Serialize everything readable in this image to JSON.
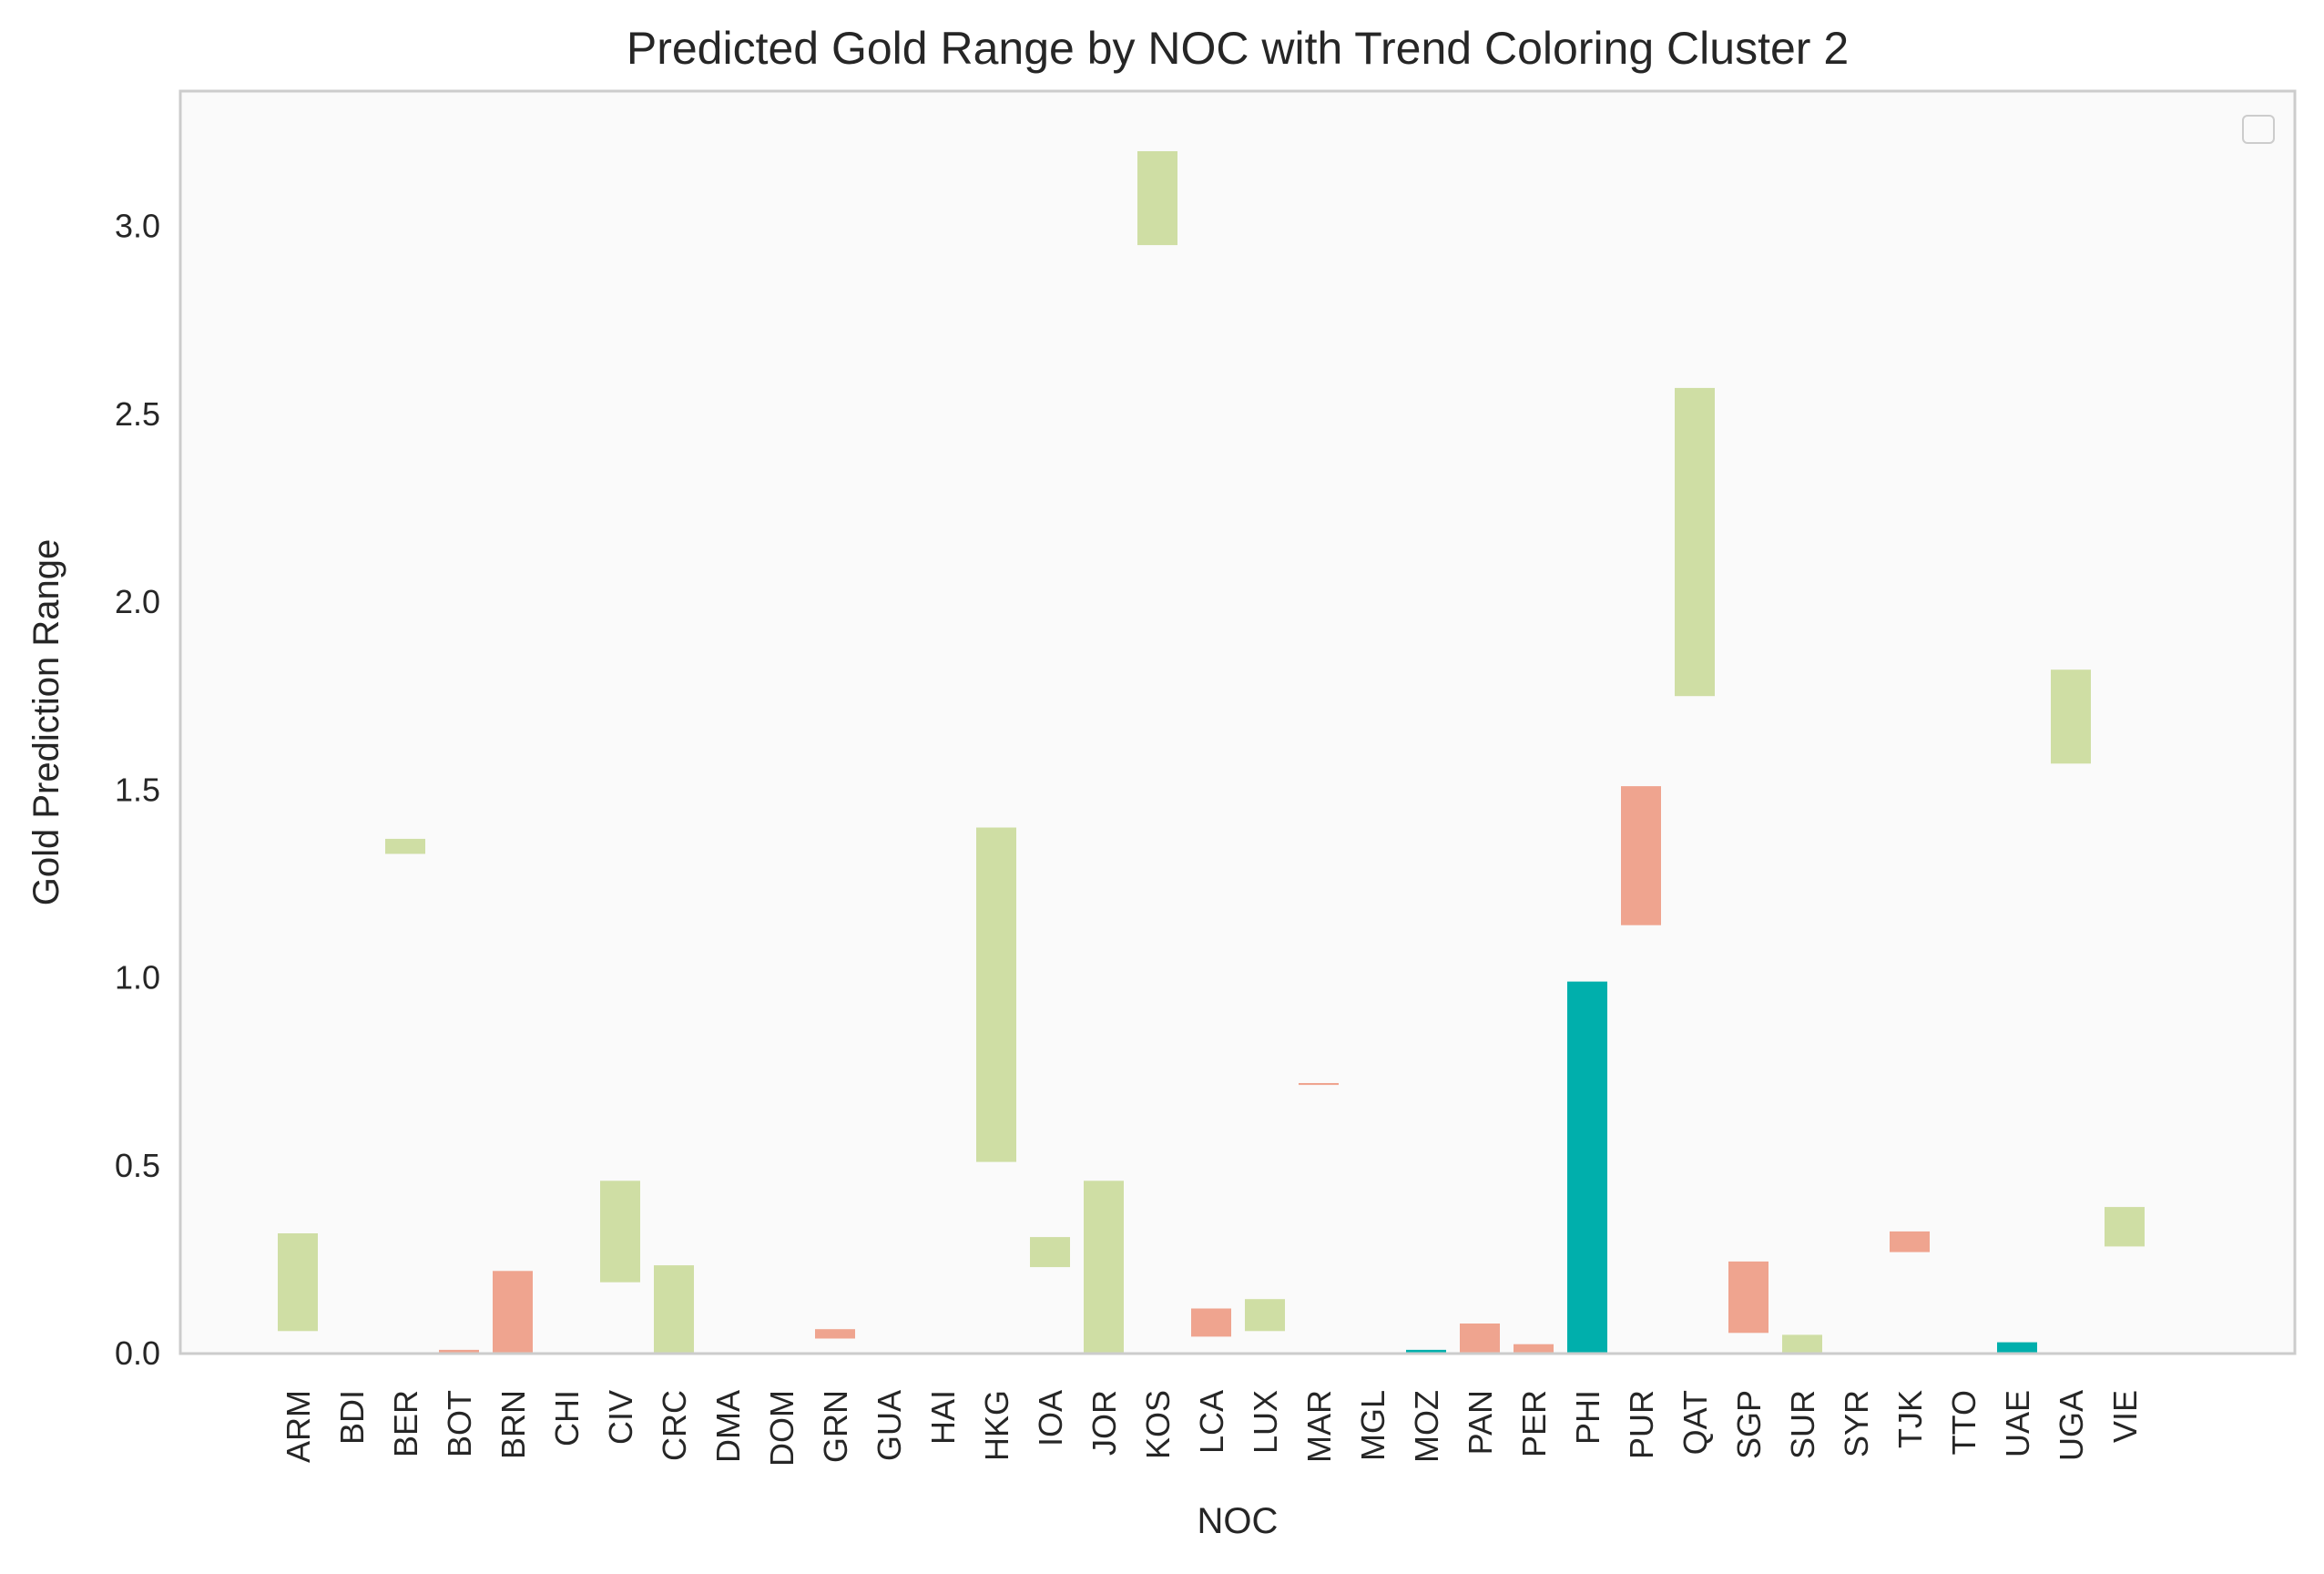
{
  "chart_data": {
    "type": "bar",
    "title": "Predicted Gold Range by NOC with Trend Coloring Cluster 2",
    "xlabel": "NOC",
    "ylabel": "Gold Prediction Range",
    "ylim": [
      0,
      3.36
    ],
    "yticks": [
      "0.0",
      "0.5",
      "1.0",
      "1.5",
      "2.0",
      "2.5",
      "3.0"
    ],
    "ytick_values": [
      0,
      0.5,
      1.0,
      1.5,
      2.0,
      2.5,
      3.0
    ],
    "grid": false,
    "legend": "top-right (empty)",
    "trend_colors": {
      "up": "#cfdea4",
      "down": "#efa48f",
      "stable": "#00afac"
    },
    "categories": [
      "ARM",
      "BDI",
      "BER",
      "BOT",
      "BRN",
      "CHI",
      "CIV",
      "CRC",
      "DMA",
      "DOM",
      "GRN",
      "GUA",
      "HAI",
      "HKG",
      "IOA",
      "JOR",
      "KOS",
      "LCA",
      "LUX",
      "MAR",
      "MGL",
      "MOZ",
      "PAN",
      "PER",
      "PHI",
      "PUR",
      "QAT",
      "SGP",
      "SUR",
      "SYR",
      "TJK",
      "TTO",
      "UAE",
      "UGA",
      "VIE"
    ],
    "bars": [
      {
        "noc": "ARM",
        "low": 0.06,
        "high": 0.32,
        "trend": "up"
      },
      {
        "noc": "BDI",
        "low": 0,
        "high": 0,
        "trend": "up"
      },
      {
        "noc": "BER",
        "low": 1.33,
        "high": 1.37,
        "trend": "up"
      },
      {
        "noc": "BOT",
        "low": 0.0,
        "high": 0.01,
        "trend": "down"
      },
      {
        "noc": "BRN",
        "low": 0.0,
        "high": 0.22,
        "trend": "down"
      },
      {
        "noc": "CHI",
        "low": 0,
        "high": 0,
        "trend": "up"
      },
      {
        "noc": "CIV",
        "low": 0.19,
        "high": 0.46,
        "trend": "up"
      },
      {
        "noc": "CRC",
        "low": 0.0,
        "high": 0.235,
        "trend": "up"
      },
      {
        "noc": "DMA",
        "low": 0,
        "high": 0,
        "trend": "up"
      },
      {
        "noc": "DOM",
        "low": 0,
        "high": 0,
        "trend": "up"
      },
      {
        "noc": "GRN",
        "low": 0.04,
        "high": 0.065,
        "trend": "down"
      },
      {
        "noc": "GUA",
        "low": 0,
        "high": 0,
        "trend": "up"
      },
      {
        "noc": "HAI",
        "low": 0,
        "high": 0,
        "trend": "up"
      },
      {
        "noc": "HKG",
        "low": 0.51,
        "high": 1.4,
        "trend": "up"
      },
      {
        "noc": "IOA",
        "low": 0.23,
        "high": 0.31,
        "trend": "up"
      },
      {
        "noc": "JOR",
        "low": 0.0,
        "high": 0.46,
        "trend": "up"
      },
      {
        "noc": "KOS",
        "low": 2.95,
        "high": 3.2,
        "trend": "up"
      },
      {
        "noc": "LCA",
        "low": 0.045,
        "high": 0.12,
        "trend": "down"
      },
      {
        "noc": "LUX",
        "low": 0.06,
        "high": 0.145,
        "trend": "up"
      },
      {
        "noc": "MAR",
        "low": 0.715,
        "high": 0.72,
        "trend": "down"
      },
      {
        "noc": "MGL",
        "low": 0,
        "high": 0,
        "trend": "up"
      },
      {
        "noc": "MOZ",
        "low": 0.0,
        "high": 0.01,
        "trend": "stable"
      },
      {
        "noc": "PAN",
        "low": 0.0,
        "high": 0.08,
        "trend": "down"
      },
      {
        "noc": "PER",
        "low": 0.0,
        "high": 0.025,
        "trend": "down"
      },
      {
        "noc": "PHI",
        "low": 0.0,
        "high": 0.99,
        "trend": "stable"
      },
      {
        "noc": "PUR",
        "low": 1.14,
        "high": 1.51,
        "trend": "down"
      },
      {
        "noc": "QAT",
        "low": 1.75,
        "high": 2.57,
        "trend": "up"
      },
      {
        "noc": "SGP",
        "low": 0.055,
        "high": 0.245,
        "trend": "down"
      },
      {
        "noc": "SUR",
        "low": 0.0,
        "high": 0.05,
        "trend": "up"
      },
      {
        "noc": "SYR",
        "low": 0,
        "high": 0,
        "trend": "up"
      },
      {
        "noc": "TJK",
        "low": 0.27,
        "high": 0.325,
        "trend": "down"
      },
      {
        "noc": "TTO",
        "low": 0,
        "high": 0,
        "trend": "up"
      },
      {
        "noc": "UAE",
        "low": 0.0,
        "high": 0.03,
        "trend": "stable"
      },
      {
        "noc": "UGA",
        "low": 1.57,
        "high": 1.82,
        "trend": "up"
      },
      {
        "noc": "VIE",
        "low": 0.285,
        "high": 0.39,
        "trend": "up"
      }
    ]
  }
}
